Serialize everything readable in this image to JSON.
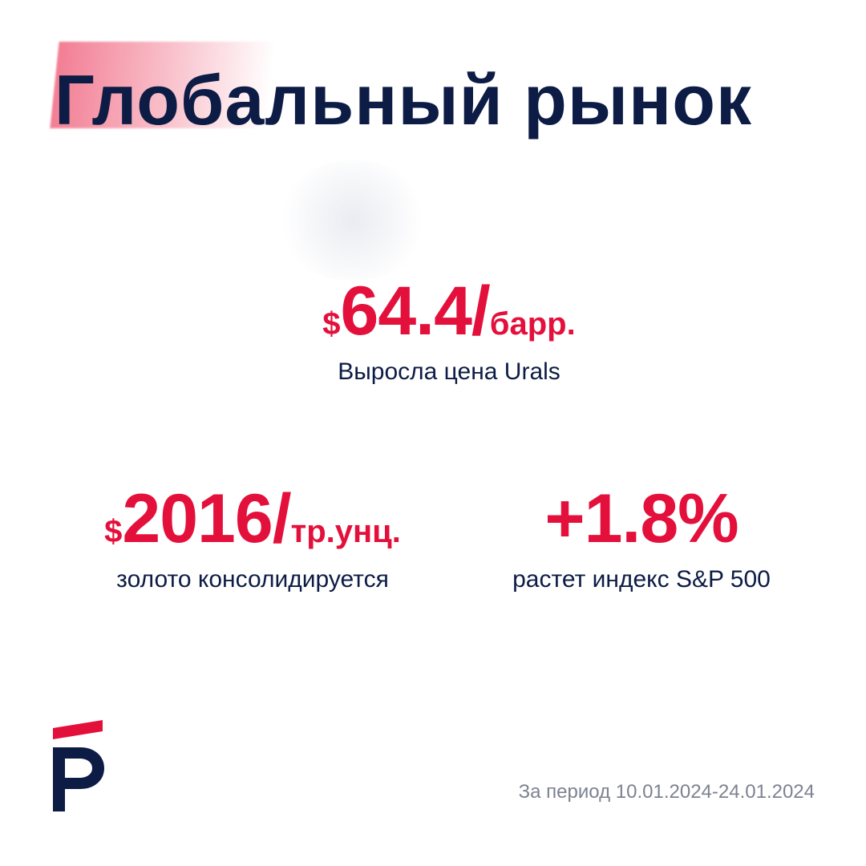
{
  "header": {
    "title": "Глобальный рынок"
  },
  "stats": {
    "urals": {
      "currency": "$",
      "value": "64.4/",
      "unit": "барр.",
      "label": "Выросла цена Urals"
    },
    "gold": {
      "currency": "$",
      "value": "2016/",
      "unit": "тр.унц.",
      "label": "золото консолидируется"
    },
    "sp500": {
      "value": "+1.8%",
      "label": "растет индекс S&P 500"
    }
  },
  "footer": {
    "period": "За период 10.01.2024-24.01.2024"
  },
  "colors": {
    "accent": "#e4103c",
    "primary": "#0d1c45",
    "muted": "#7d8290"
  },
  "icons": {
    "logo": "brand-logo-icon"
  }
}
